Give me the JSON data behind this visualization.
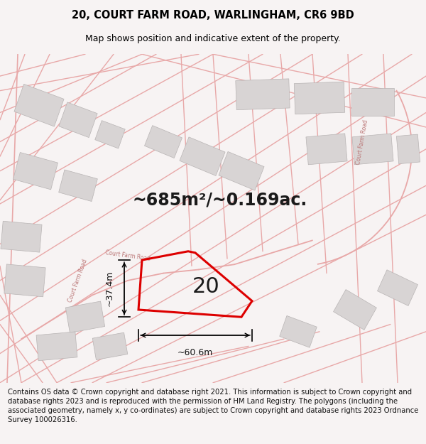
{
  "title": "20, COURT FARM ROAD, WARLINGHAM, CR6 9BD",
  "subtitle": "Map shows position and indicative extent of the property.",
  "area_text": "~685m²/~0.169ac.",
  "number_text": "20",
  "width_label": "~60.6m",
  "height_label": "~37.4m",
  "footer": "Contains OS data © Crown copyright and database right 2021. This information is subject to Crown copyright and database rights 2023 and is reproduced with the permission of HM Land Registry. The polygons (including the associated geometry, namely x, y co-ordinates) are subject to Crown copyright and database rights 2023 Ordnance Survey 100026316.",
  "bg_color": "#f7f3f3",
  "map_bg": "#ffffff",
  "road_color": "#e8a8a8",
  "road_color2": "#d08080",
  "property_color": "#dd0000",
  "road_label_color": "#bb7777",
  "title_color": "#000000",
  "footer_color": "#111111",
  "title_fontsize": 10.5,
  "subtitle_fontsize": 9,
  "area_fontsize": 17,
  "number_fontsize": 22,
  "footer_fontsize": 7.2,
  "map_road_lw": 1.0,
  "property_lw": 2.2
}
